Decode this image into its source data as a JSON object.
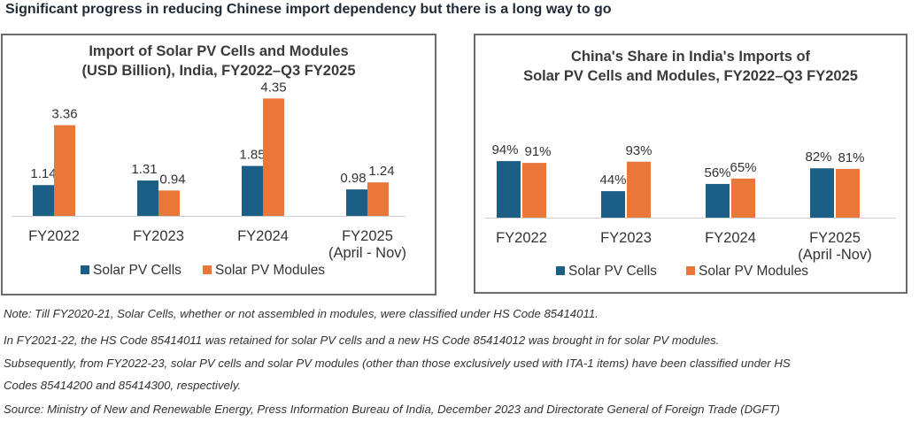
{
  "headline": "Significant progress in reducing Chinese import dependency but there is a long way to go",
  "colors": {
    "cells": "#1b5f86",
    "modules": "#e9773a"
  },
  "chart_data": [
    {
      "type": "bar",
      "title_lines": [
        "Import of Solar PV Cells and Modules",
        "(USD Billion), India, FY2022–Q3 FY2025"
      ],
      "categories": [
        [
          "FY2022"
        ],
        [
          "FY2023"
        ],
        [
          "FY2024"
        ],
        [
          "FY2025",
          "(April - Nov)"
        ]
      ],
      "series": [
        {
          "name": "Solar PV Cells",
          "values": [
            1.14,
            1.31,
            1.85,
            0.98
          ],
          "labels": [
            "1.14",
            "1.31",
            "1.85",
            "0.98"
          ]
        },
        {
          "name": "Solar PV Modules",
          "values": [
            3.36,
            0.94,
            4.35,
            1.24
          ],
          "labels": [
            "3.36",
            "0.94",
            "4.35",
            "1.24"
          ]
        }
      ],
      "ylim": [
        0,
        5
      ],
      "legend": "bottom",
      "grid": false
    },
    {
      "type": "bar",
      "title_lines": [
        "China's Share in India's Imports of",
        "Solar PV Cells and Modules, FY2022–Q3 FY2025"
      ],
      "categories": [
        [
          "FY2022"
        ],
        [
          "FY2023"
        ],
        [
          "FY2024"
        ],
        [
          "FY2025",
          "(April -Nov)"
        ]
      ],
      "series": [
        {
          "name": "Solar PV Cells",
          "values": [
            94,
            44,
            56,
            82
          ],
          "labels": [
            "94%",
            "44%",
            "56%",
            "82%"
          ]
        },
        {
          "name": "Solar PV Modules",
          "values": [
            91,
            93,
            65,
            81
          ],
          "labels": [
            "91%",
            "93%",
            "65%",
            "81%"
          ]
        }
      ],
      "ylim": [
        0,
        150
      ],
      "legend": "bottom",
      "grid": false
    }
  ],
  "notes": [
    "Note: Till FY2020-21, Solar Cells, whether or not assembled in modules, were classified under HS Code 85414011.",
    "In FY2021-22, the HS Code 85414011 was retained for solar PV cells and a new HS Code 85414012 was brought in for solar PV modules.",
    "Subsequently, from FY2022-23, solar PV cells and solar PV modules (other than those exclusively used with ITA-1 items) have been classified under HS",
    "Codes 85414200 and 85414300, respectively.",
    "Source: Ministry of New and Renewable Energy, Press Information Bureau of India, December 2023 and Directorate General of Foreign Trade (DGFT)"
  ]
}
